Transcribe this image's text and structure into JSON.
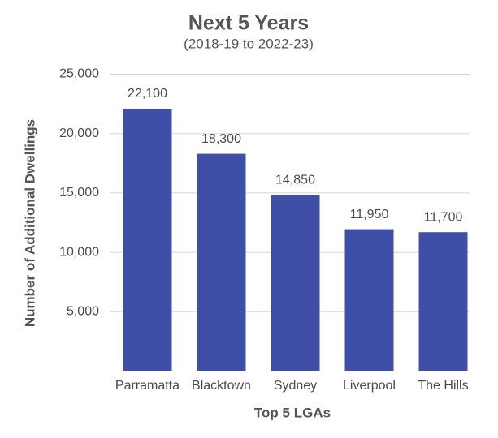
{
  "chart_data": {
    "type": "bar",
    "title": "Next 5 Years",
    "subtitle": "(2018-19 to 2022-23)",
    "x_label": "Top 5 LGAs",
    "y_label": "Number of Additional Dwellings",
    "categories": [
      "Parramatta",
      "Blacktown",
      "Sydney",
      "Liverpool",
      "The Hills"
    ],
    "values": [
      22100,
      18300,
      14850,
      11950,
      11700
    ],
    "value_labels": [
      "22,100",
      "18,300",
      "14,850",
      "11,950",
      "11,700"
    ],
    "color": "#3f4ea6",
    "ylim": [
      0,
      25000
    ],
    "yticks": [
      {
        "value": 5000,
        "label": "5,000"
      },
      {
        "value": 10000,
        "label": "10,000"
      },
      {
        "value": 15000,
        "label": "15,000"
      },
      {
        "value": 20000,
        "label": "20,000"
      },
      {
        "value": 25000,
        "label": "25,000"
      }
    ],
    "grid": true
  }
}
